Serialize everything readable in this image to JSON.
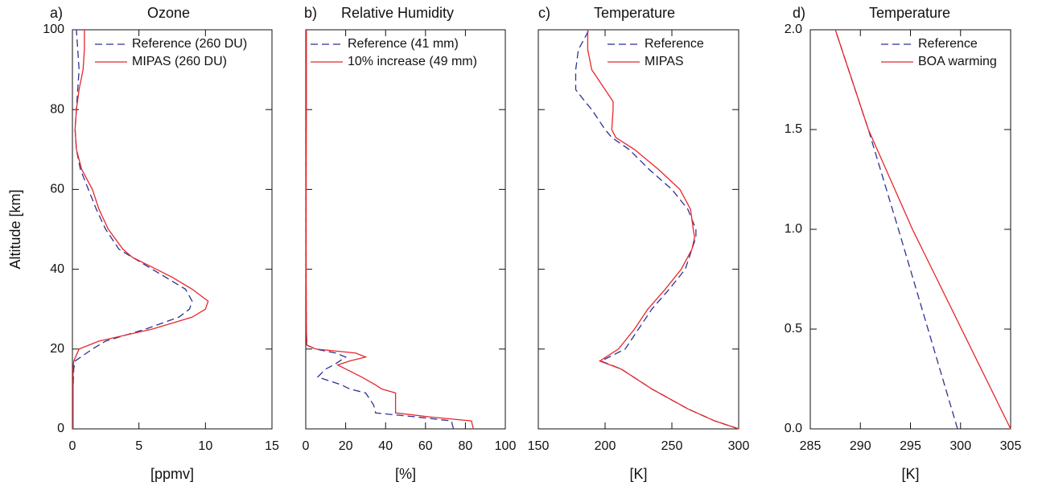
{
  "chart_data": [
    {
      "type": "line",
      "label": "a)",
      "title": "Ozone",
      "xlabel": "[ppmv]",
      "ylabel": "Altitude [km]",
      "y": [
        0,
        5,
        10,
        15,
        17,
        20,
        22,
        25,
        28,
        30,
        32,
        35,
        38,
        40,
        43,
        45,
        50,
        55,
        60,
        65,
        70,
        75,
        80,
        85,
        90,
        95,
        100
      ],
      "series": [
        {
          "name": "Reference (260 DU)",
          "color": "#2e3192",
          "dashed": true,
          "values": [
            0.05,
            0.05,
            0.05,
            0.1,
            0.2,
            1.5,
            2.5,
            5.5,
            8,
            8.8,
            9,
            8.5,
            7,
            6,
            4.5,
            3.5,
            2.5,
            1.8,
            1.2,
            0.6,
            0.3,
            0.2,
            0.3,
            0.4,
            0.5,
            0.4,
            0.3
          ]
        },
        {
          "name": "MIPAS (260 DU)",
          "color": "#e8262b",
          "dashed": false,
          "values": [
            0.05,
            0.05,
            0.05,
            0.05,
            0.1,
            0.5,
            2,
            6,
            9,
            10,
            10.2,
            9,
            7.5,
            6.3,
            4.5,
            3.8,
            2.7,
            2,
            1.5,
            0.7,
            0.3,
            0.2,
            0.3,
            0.5,
            0.8,
            0.9,
            0.9
          ]
        }
      ],
      "xlim": [
        0,
        15
      ],
      "ylim": [
        0,
        100
      ],
      "xticks": [
        0,
        5,
        10,
        15
      ],
      "yticks": [
        0,
        20,
        40,
        60,
        80,
        100
      ],
      "ytick_labels": true,
      "legend": "upper right"
    },
    {
      "type": "line",
      "label": "b)",
      "title": "Relative Humidity",
      "xlabel": "[%]",
      "y": [
        0,
        2,
        3,
        4,
        6,
        9,
        10,
        11,
        13,
        15,
        16,
        17,
        18,
        19,
        20,
        21,
        25,
        40,
        60,
        80,
        100
      ],
      "series": [
        {
          "name": "Reference (41 mm)",
          "color": "#2e3192",
          "dashed": true,
          "values": [
            74,
            73,
            55,
            35,
            34,
            30,
            22,
            18,
            6,
            10,
            14,
            17,
            20,
            15,
            5,
            0.5,
            0.3,
            0.1,
            0.1,
            0.2,
            0.2
          ]
        },
        {
          "name": "10% increase (49 mm)",
          "color": "#e8262b",
          "dashed": false,
          "values": [
            84,
            83,
            62,
            45,
            45,
            45,
            38,
            35,
            28,
            20,
            16,
            22,
            30,
            25,
            5,
            0.5,
            0.3,
            0.2,
            0.2,
            0.3,
            0.3
          ]
        }
      ],
      "xlim": [
        0,
        100
      ],
      "ylim": [
        0,
        100
      ],
      "xticks": [
        0,
        20,
        40,
        60,
        80,
        100
      ],
      "yticks": [
        0,
        20,
        40,
        60,
        80,
        100
      ],
      "ytick_labels": false,
      "legend": "upper right"
    },
    {
      "type": "line",
      "label": "c)",
      "title": "Temperature",
      "xlabel": "[K]",
      "y": [
        0,
        2,
        5,
        10,
        15,
        17,
        20,
        25,
        30,
        35,
        40,
        45,
        48,
        50,
        55,
        60,
        65,
        70,
        73,
        75,
        80,
        82,
        85,
        90,
        95,
        100
      ],
      "series": [
        {
          "name": "Reference",
          "color": "#2e3192",
          "dashed": true,
          "values": [
            300,
            282,
            262,
            235,
            212,
            197,
            215,
            225,
            235,
            248,
            260,
            265,
            268,
            268,
            262,
            250,
            233,
            218,
            205,
            200,
            190,
            185,
            178,
            178,
            180,
            188
          ]
        },
        {
          "name": "MIPAS",
          "color": "#e8262b",
          "dashed": false,
          "values": [
            300,
            282,
            262,
            235,
            212,
            196,
            210,
            222,
            232,
            245,
            257,
            265,
            267,
            266,
            264,
            256,
            240,
            222,
            208,
            205,
            206,
            206,
            200,
            190,
            187,
            187
          ]
        }
      ],
      "xlim": [
        150,
        300
      ],
      "ylim": [
        0,
        100
      ],
      "xticks": [
        150,
        200,
        250,
        300
      ],
      "yticks": [
        0,
        20,
        40,
        60,
        80,
        100
      ],
      "ytick_labels": false,
      "legend": "upper right"
    },
    {
      "type": "line",
      "label": "d)",
      "title": "Temperature",
      "xlabel": "[K]",
      "y": [
        0,
        1,
        1.5,
        2
      ],
      "series": [
        {
          "name": "Reference",
          "color": "#2e3192",
          "dashed": true,
          "values": [
            299.7,
            293.8,
            290.8,
            287.5
          ]
        },
        {
          "name": "BOA warming",
          "color": "#e8262b",
          "dashed": false,
          "values": [
            305,
            295.2,
            290.8,
            287.5
          ]
        }
      ],
      "xlim": [
        285,
        305
      ],
      "ylim": [
        0,
        2
      ],
      "xticks": [
        285,
        290,
        295,
        300,
        305
      ],
      "yticks": [
        {
          "value": 0,
          "label": "0.0"
        },
        0.5,
        {
          "value": 1,
          "label": "1.0"
        },
        1.5,
        {
          "value": 2,
          "label": "2.0"
        }
      ],
      "ytick_labels": true,
      "legend": "upper right"
    }
  ]
}
